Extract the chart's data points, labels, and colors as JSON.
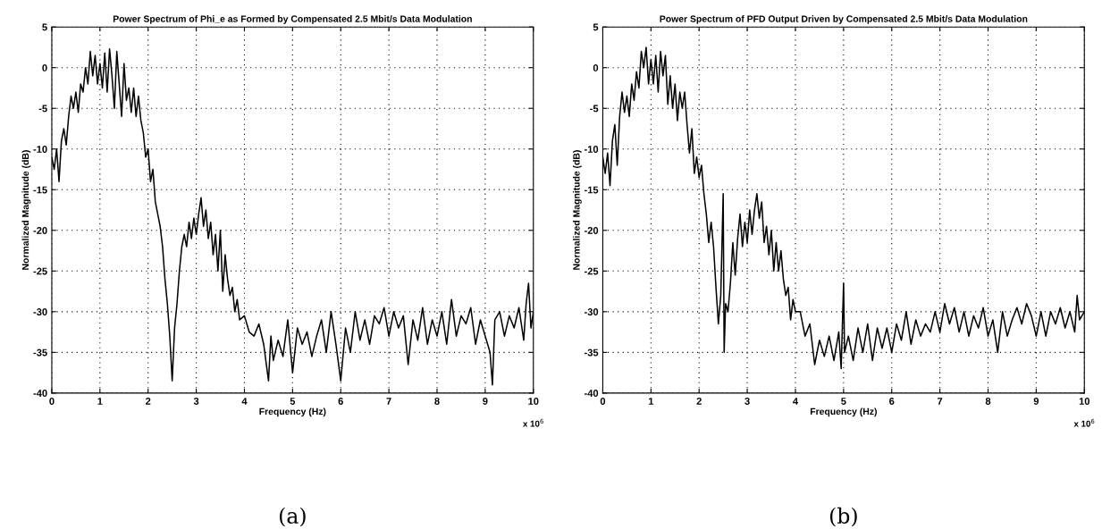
{
  "chart_data": [
    {
      "type": "line",
      "title": "Power Spectrum of Phi_e as Formed by Compensated 2.5 Mbit/s Data Modulation",
      "xlabel": "Frequency (Hz)",
      "ylabel": "Normalized Magnitude (dB)",
      "x": [
        0,
        0.05,
        0.1,
        0.15,
        0.2,
        0.25,
        0.3,
        0.35,
        0.4,
        0.45,
        0.5,
        0.55,
        0.6,
        0.65,
        0.7,
        0.75,
        0.8,
        0.85,
        0.9,
        0.95,
        1.0,
        1.05,
        1.1,
        1.15,
        1.2,
        1.25,
        1.3,
        1.35,
        1.4,
        1.45,
        1.5,
        1.55,
        1.6,
        1.65,
        1.7,
        1.75,
        1.8,
        1.85,
        1.9,
        1.95,
        2.0,
        2.05,
        2.1,
        2.15,
        2.2,
        2.25,
        2.3,
        2.35,
        2.4,
        2.45,
        2.5,
        2.55,
        2.6,
        2.65,
        2.7,
        2.75,
        2.8,
        2.85,
        2.9,
        2.95,
        3.0,
        3.05,
        3.1,
        3.15,
        3.2,
        3.25,
        3.3,
        3.35,
        3.4,
        3.45,
        3.5,
        3.55,
        3.6,
        3.65,
        3.7,
        3.75,
        3.8,
        3.85,
        3.9,
        4.0,
        4.1,
        4.2,
        4.3,
        4.4,
        4.5,
        4.55,
        4.6,
        4.7,
        4.8,
        4.9,
        5.0,
        5.1,
        5.2,
        5.3,
        5.4,
        5.5,
        5.6,
        5.7,
        5.8,
        5.9,
        6.0,
        6.1,
        6.2,
        6.3,
        6.4,
        6.5,
        6.6,
        6.7,
        6.8,
        6.9,
        7.0,
        7.1,
        7.2,
        7.3,
        7.4,
        7.5,
        7.6,
        7.7,
        7.8,
        7.9,
        8.0,
        8.1,
        8.2,
        8.3,
        8.4,
        8.5,
        8.6,
        8.7,
        8.8,
        8.9,
        9.0,
        9.1,
        9.15,
        9.2,
        9.3,
        9.4,
        9.5,
        9.6,
        9.7,
        9.8,
        9.85,
        9.9,
        9.95,
        10
      ],
      "series": [
        {
          "color": "#000000",
          "values": [
            -11,
            -12.5,
            -10,
            -14,
            -9,
            -7.5,
            -9.5,
            -6,
            -3.5,
            -5,
            -3,
            -5.5,
            -2,
            -3,
            0,
            -2,
            2,
            -1,
            1.5,
            -2,
            0.5,
            -2.5,
            1.8,
            -3,
            2.3,
            -1,
            -5,
            2,
            -2,
            -6,
            0.5,
            -4,
            -2.5,
            -5.5,
            -2.5,
            -6,
            -3.5,
            -6.5,
            -8,
            -11,
            -10,
            -14,
            -12.5,
            -16.5,
            -18,
            -19.5,
            -22,
            -26,
            -29,
            -33,
            -38.5,
            -32,
            -29,
            -25,
            -22,
            -20.5,
            -22,
            -19,
            -21,
            -18.5,
            -20.5,
            -18,
            -16,
            -19.5,
            -17.5,
            -21,
            -19,
            -23,
            -20.5,
            -25,
            -20,
            -27.5,
            -23,
            -26,
            -28,
            -27,
            -30,
            -28.5,
            -31,
            -30.5,
            -32.5,
            -33,
            -31.5,
            -34,
            -38.5,
            -33,
            -36,
            -33.5,
            -35.5,
            -31,
            -37.5,
            -32,
            -34,
            -32.5,
            -35.5,
            -33,
            -31,
            -35,
            -30,
            -34,
            -38.5,
            -32,
            -35,
            -30,
            -33.5,
            -31,
            -34,
            -30.5,
            -31.5,
            -29.5,
            -33,
            -30,
            -32,
            -30.5,
            -36.5,
            -31,
            -33.5,
            -29.5,
            -34,
            -31,
            -33,
            -30,
            -34,
            -28.5,
            -33,
            -30.5,
            -31.5,
            -29.5,
            -34,
            -31,
            -33,
            -35,
            -39,
            -31,
            -30,
            -33,
            -30.5,
            -32,
            -29.5,
            -33.5,
            -29,
            -26.5,
            -32,
            -30
          ]
        }
      ],
      "xlim": [
        0,
        10
      ],
      "ylim": [
        -40,
        5
      ],
      "xticks": [
        0,
        1,
        2,
        3,
        4,
        5,
        6,
        7,
        8,
        9,
        10
      ],
      "yticks": [
        -40,
        -35,
        -30,
        -25,
        -20,
        -15,
        -10,
        -5,
        0,
        5
      ],
      "grid": true,
      "annotations": [
        "x 10$^{6}$",
        "(a)"
      ]
    },
    {
      "type": "line",
      "title": "Power Spectrum of PFD Output Driven by Compensated 2.5 Mbit/s Data Modulation",
      "xlabel": "Frequency (Hz)",
      "ylabel": "Normalized Magnitude (dB)",
      "x": [
        0,
        0.05,
        0.1,
        0.15,
        0.2,
        0.25,
        0.3,
        0.35,
        0.4,
        0.45,
        0.5,
        0.55,
        0.6,
        0.65,
        0.7,
        0.75,
        0.8,
        0.85,
        0.9,
        0.95,
        1.0,
        1.05,
        1.1,
        1.15,
        1.2,
        1.25,
        1.3,
        1.35,
        1.4,
        1.45,
        1.5,
        1.55,
        1.6,
        1.65,
        1.7,
        1.75,
        1.8,
        1.85,
        1.9,
        1.95,
        2.0,
        2.05,
        2.1,
        2.15,
        2.2,
        2.25,
        2.3,
        2.35,
        2.4,
        2.45,
        2.5,
        2.52,
        2.55,
        2.6,
        2.65,
        2.7,
        2.75,
        2.8,
        2.85,
        2.9,
        2.95,
        3.0,
        3.05,
        3.1,
        3.15,
        3.2,
        3.25,
        3.3,
        3.35,
        3.4,
        3.45,
        3.5,
        3.55,
        3.6,
        3.65,
        3.7,
        3.75,
        3.8,
        3.85,
        3.9,
        3.95,
        4.0,
        4.1,
        4.2,
        4.3,
        4.4,
        4.5,
        4.6,
        4.7,
        4.8,
        4.9,
        4.95,
        5.0,
        5.02,
        5.1,
        5.2,
        5.3,
        5.4,
        5.5,
        5.6,
        5.7,
        5.8,
        5.9,
        6.0,
        6.1,
        6.2,
        6.3,
        6.4,
        6.5,
        6.6,
        6.7,
        6.8,
        6.9,
        7.0,
        7.1,
        7.2,
        7.3,
        7.4,
        7.5,
        7.6,
        7.7,
        7.8,
        7.9,
        8.0,
        8.1,
        8.2,
        8.3,
        8.4,
        8.5,
        8.6,
        8.7,
        8.8,
        8.9,
        9.0,
        9.1,
        9.2,
        9.3,
        9.4,
        9.5,
        9.6,
        9.7,
        9.8,
        9.85,
        9.9,
        10
      ],
      "series": [
        {
          "color": "#000000",
          "values": [
            -11,
            -13,
            -10.5,
            -14.5,
            -9,
            -7,
            -12,
            -6,
            -3,
            -5.5,
            -3.5,
            -6,
            -2,
            -4,
            -0.5,
            -2.5,
            2,
            0,
            2.5,
            -2,
            1,
            -2,
            1.5,
            -3,
            2,
            -1,
            1.5,
            -4.5,
            -1,
            -5,
            -2,
            -6.5,
            -3,
            -5,
            -3,
            -7,
            -10.5,
            -7.5,
            -13,
            -11,
            -13.5,
            -12,
            -15.5,
            -18,
            -21.5,
            -19,
            -22,
            -27,
            -31.5,
            -28,
            -15.5,
            -35,
            -29,
            -30,
            -26.5,
            -21.5,
            -25.5,
            -21,
            -18,
            -22,
            -19,
            -21.5,
            -17.5,
            -20.5,
            -17.5,
            -15.5,
            -18.5,
            -16.5,
            -21.5,
            -19.5,
            -23,
            -20,
            -25,
            -21.5,
            -25,
            -22.5,
            -26,
            -28,
            -27,
            -31,
            -28.5,
            -30,
            -30,
            -33,
            -31.5,
            -36.5,
            -33.5,
            -35.5,
            -33,
            -36,
            -32.5,
            -37,
            -26.5,
            -35,
            -33,
            -36,
            -32,
            -35,
            -31.5,
            -36,
            -32,
            -34.5,
            -32,
            -35,
            -31.5,
            -33.5,
            -30,
            -34,
            -31,
            -33,
            -31.5,
            -32.5,
            -30,
            -32.5,
            -29,
            -31.5,
            -29.5,
            -32.5,
            -30,
            -33,
            -30.5,
            -32,
            -29.5,
            -33,
            -31,
            -35,
            -30,
            -33,
            -31,
            -29.5,
            -31.5,
            -29,
            -30.5,
            -33,
            -30,
            -33,
            -30,
            -31.5,
            -29.5,
            -32,
            -30,
            -32.5,
            -28,
            -31,
            -30
          ]
        }
      ],
      "xlim": [
        0,
        10
      ],
      "ylim": [
        -40,
        5
      ],
      "xticks": [
        0,
        1,
        2,
        3,
        4,
        5,
        6,
        7,
        8,
        9,
        10
      ],
      "yticks": [
        -40,
        -35,
        -30,
        -25,
        -20,
        -15,
        -10,
        -5,
        0,
        5
      ],
      "grid": true,
      "annotations": [
        "x 10$^{6}$",
        "(b)"
      ]
    }
  ]
}
